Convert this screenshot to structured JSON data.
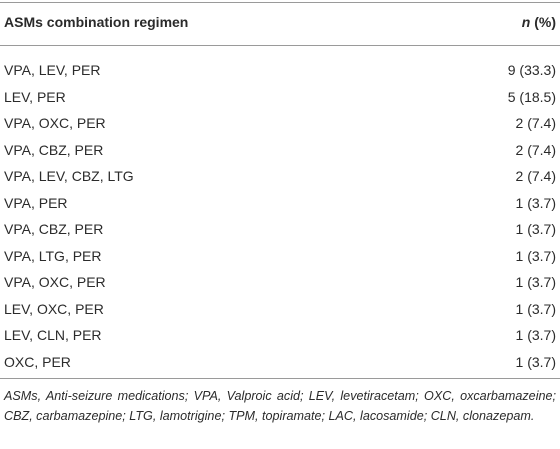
{
  "table": {
    "header": {
      "regimen": "ASMs combination regimen",
      "n": "n",
      "pct": "(%)"
    },
    "rows": [
      [
        "VPA, LEV, PER",
        "9 (33.3)"
      ],
      [
        "LEV, PER",
        "5 (18.5)"
      ],
      [
        "VPA, OXC, PER",
        "2 (7.4)"
      ],
      [
        "VPA, CBZ, PER",
        "2 (7.4)"
      ],
      [
        "VPA, LEV, CBZ, LTG",
        "2 (7.4)"
      ],
      [
        "VPA, PER",
        "1 (3.7)"
      ],
      [
        "VPA, CBZ, PER",
        "1 (3.7)"
      ],
      [
        "VPA, LTG, PER",
        "1 (3.7)"
      ],
      [
        "VPA, OXC, PER",
        "1 (3.7)"
      ],
      [
        "LEV, OXC, PER",
        "1 (3.7)"
      ],
      [
        "LEV, CLN, PER",
        "1 (3.7)"
      ],
      [
        "OXC, PER",
        "1 (3.7)"
      ]
    ],
    "footnote": "ASMs, Anti-seizure medications; VPA, Valproic acid; LEV, levetiracetam; OXC, oxcarbamazeine; CBZ, carbamazepine; LTG, lamotrigine; TPM, topiramate; LAC, lacosamide; CLN, clonazepam."
  }
}
